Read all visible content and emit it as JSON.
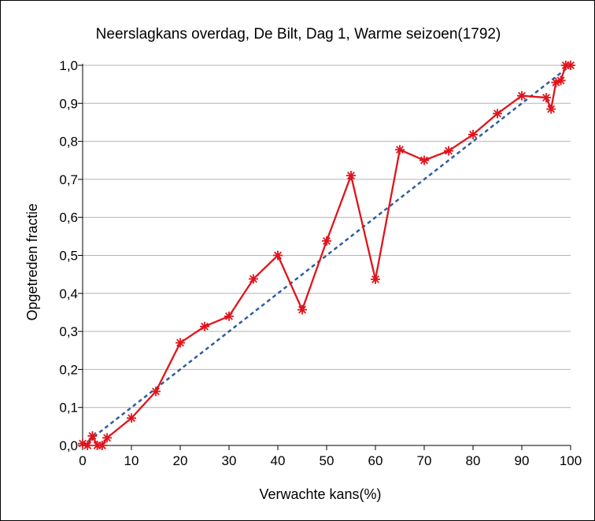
{
  "chart_data": {
    "type": "line",
    "title": "Neerslagkans overdag, De Bilt, Dag 1, Warme seizoen(1792)",
    "xlabel": "Verwachte kans(%)",
    "ylabel": "Opgetreden fractie",
    "xlim": [
      0,
      100
    ],
    "ylim": [
      0,
      1
    ],
    "x_ticks": [
      0,
      10,
      20,
      30,
      40,
      50,
      60,
      70,
      80,
      90,
      100
    ],
    "x_tick_labels": [
      "0",
      "10",
      "20",
      "30",
      "40",
      "50",
      "60",
      "70",
      "80",
      "90",
      "100"
    ],
    "y_ticks": [
      0,
      0.1,
      0.2,
      0.3,
      0.4,
      0.5,
      0.6,
      0.7,
      0.8,
      0.9,
      1.0
    ],
    "y_tick_labels": [
      "0,0",
      "0,1",
      "0,2",
      "0,3",
      "0,4",
      "0,5",
      "0,6",
      "0,7",
      "0,8",
      "0,9",
      "1,0"
    ],
    "grid": "horizontal",
    "legend": "none",
    "colors": {
      "series": "#e0141c",
      "reference": "#2e5e9c",
      "grid": "#b4b4b4"
    },
    "series": [
      {
        "x": [
          0,
          1,
          2,
          3,
          4,
          5,
          10,
          15,
          20,
          25,
          30,
          35,
          40,
          45,
          50,
          55,
          60,
          65,
          70,
          75,
          80,
          85,
          90,
          95,
          96,
          97,
          98,
          99,
          100
        ],
        "y": [
          0.005,
          0.0,
          0.025,
          0.0,
          0.0,
          0.02,
          0.072,
          0.142,
          0.27,
          0.313,
          0.34,
          0.438,
          0.5,
          0.357,
          0.538,
          0.71,
          0.437,
          0.778,
          0.75,
          0.775,
          0.818,
          0.873,
          0.92,
          0.915,
          0.885,
          0.955,
          0.96,
          1.0,
          1.0
        ],
        "marker": "asterisk"
      },
      {
        "x": [
          0,
          100
        ],
        "y": [
          0,
          1
        ],
        "line": "dashed"
      }
    ]
  }
}
